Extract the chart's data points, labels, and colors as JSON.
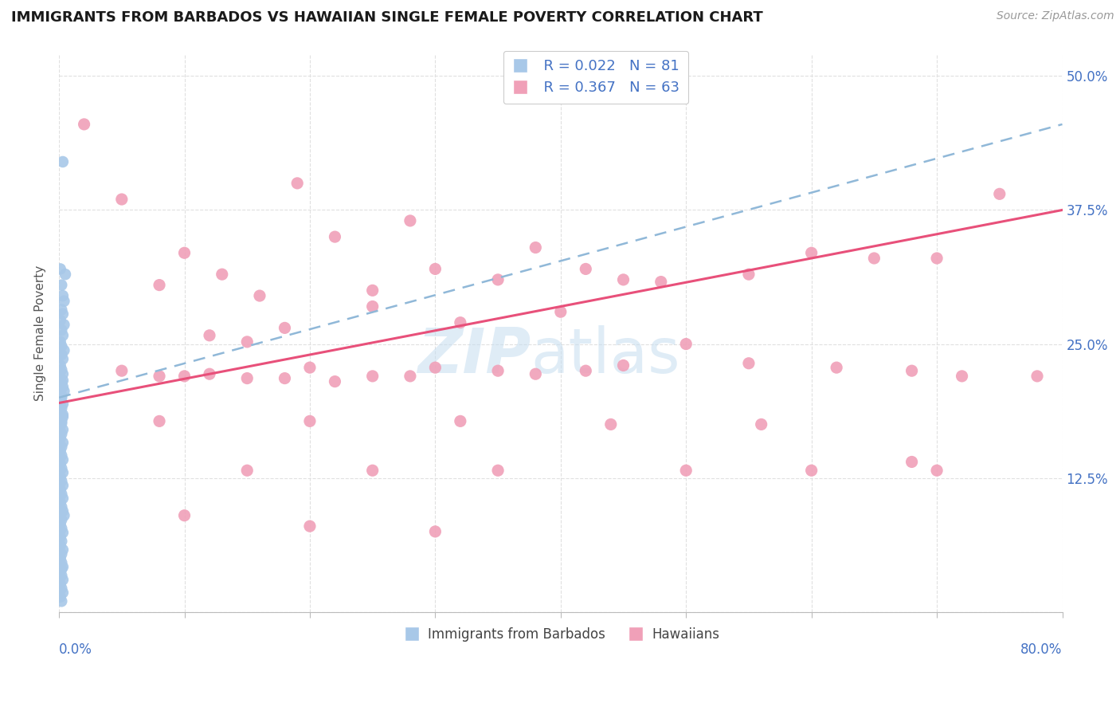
{
  "title": "IMMIGRANTS FROM BARBADOS VS HAWAIIAN SINGLE FEMALE POVERTY CORRELATION CHART",
  "source": "Source: ZipAtlas.com",
  "ylabel": "Single Female Poverty",
  "ytick_vals": [
    0.0,
    0.125,
    0.25,
    0.375,
    0.5
  ],
  "ytick_labels": [
    "",
    "12.5%",
    "25.0%",
    "37.5%",
    "50.0%"
  ],
  "xlim": [
    0.0,
    0.8
  ],
  "ylim": [
    0.0,
    0.52
  ],
  "legend_r1": "R = 0.022",
  "legend_n1": "N = 81",
  "legend_r2": "R = 0.367",
  "legend_n2": "N = 63",
  "legend_label1": "Immigrants from Barbados",
  "legend_label2": "Hawaiians",
  "blue_color": "#a8c8e8",
  "pink_color": "#f0a0b8",
  "blue_line_color": "#90b8d8",
  "pink_line_color": "#e8507a",
  "title_color": "#1a1a1a",
  "axis_label_color": "#4472c4",
  "grid_color": "#e0e0e0",
  "blue_x": [
    0.003,
    0.001,
    0.005,
    0.002,
    0.003,
    0.004,
    0.002,
    0.003,
    0.001,
    0.004,
    0.002,
    0.003,
    0.001,
    0.002,
    0.004,
    0.002,
    0.003,
    0.001,
    0.002,
    0.003,
    0.001,
    0.002,
    0.003,
    0.004,
    0.002,
    0.001,
    0.003,
    0.002,
    0.001,
    0.003,
    0.002,
    0.001,
    0.003,
    0.002,
    0.001,
    0.003,
    0.002,
    0.001,
    0.002,
    0.003,
    0.001,
    0.002,
    0.003,
    0.001,
    0.002,
    0.003,
    0.001,
    0.002,
    0.003,
    0.001,
    0.002,
    0.003,
    0.004,
    0.002,
    0.001,
    0.002,
    0.003,
    0.001,
    0.002,
    0.001,
    0.003,
    0.002,
    0.001,
    0.002,
    0.003,
    0.001,
    0.002,
    0.003,
    0.001,
    0.002,
    0.003,
    0.001,
    0.002,
    0.003,
    0.001,
    0.002,
    0.001,
    0.003,
    0.002,
    0.001,
    0.002
  ],
  "blue_y": [
    0.42,
    0.32,
    0.315,
    0.305,
    0.295,
    0.29,
    0.282,
    0.278,
    0.272,
    0.268,
    0.263,
    0.258,
    0.252,
    0.248,
    0.244,
    0.24,
    0.236,
    0.23,
    0.226,
    0.222,
    0.218,
    0.214,
    0.21,
    0.206,
    0.202,
    0.198,
    0.194,
    0.19,
    0.186,
    0.182,
    0.178,
    0.174,
    0.17,
    0.166,
    0.162,
    0.158,
    0.154,
    0.15,
    0.146,
    0.142,
    0.138,
    0.134,
    0.13,
    0.126,
    0.122,
    0.118,
    0.114,
    0.11,
    0.106,
    0.102,
    0.098,
    0.094,
    0.09,
    0.086,
    0.082,
    0.078,
    0.074,
    0.07,
    0.066,
    0.062,
    0.058,
    0.054,
    0.05,
    0.046,
    0.042,
    0.038,
    0.034,
    0.03,
    0.026,
    0.022,
    0.018,
    0.014,
    0.01,
    0.216,
    0.208,
    0.2,
    0.192,
    0.184,
    0.176,
    0.168,
    0.04
  ],
  "pink_x": [
    0.02,
    0.13,
    0.05,
    0.19,
    0.28,
    0.1,
    0.16,
    0.35,
    0.22,
    0.3,
    0.08,
    0.42,
    0.25,
    0.38,
    0.45,
    0.18,
    0.12,
    0.55,
    0.32,
    0.48,
    0.6,
    0.15,
    0.25,
    0.4,
    0.65,
    0.7,
    0.75,
    0.2,
    0.1,
    0.05,
    0.08,
    0.15,
    0.22,
    0.3,
    0.38,
    0.5,
    0.18,
    0.12,
    0.25,
    0.35,
    0.45,
    0.28,
    0.42,
    0.55,
    0.62,
    0.68,
    0.72,
    0.78,
    0.08,
    0.2,
    0.32,
    0.44,
    0.56,
    0.68,
    0.15,
    0.25,
    0.35,
    0.5,
    0.6,
    0.7,
    0.1,
    0.2,
    0.3
  ],
  "pink_y": [
    0.455,
    0.315,
    0.385,
    0.4,
    0.365,
    0.335,
    0.295,
    0.31,
    0.35,
    0.32,
    0.305,
    0.32,
    0.3,
    0.34,
    0.31,
    0.265,
    0.258,
    0.315,
    0.27,
    0.308,
    0.335,
    0.252,
    0.285,
    0.28,
    0.33,
    0.33,
    0.39,
    0.228,
    0.22,
    0.225,
    0.22,
    0.218,
    0.215,
    0.228,
    0.222,
    0.25,
    0.218,
    0.222,
    0.22,
    0.225,
    0.23,
    0.22,
    0.225,
    0.232,
    0.228,
    0.225,
    0.22,
    0.22,
    0.178,
    0.178,
    0.178,
    0.175,
    0.175,
    0.14,
    0.132,
    0.132,
    0.132,
    0.132,
    0.132,
    0.132,
    0.09,
    0.08,
    0.075
  ],
  "trend_blue_start_y": 0.2,
  "trend_blue_end_y": 0.455,
  "trend_pink_start_y": 0.195,
  "trend_pink_end_y": 0.375
}
